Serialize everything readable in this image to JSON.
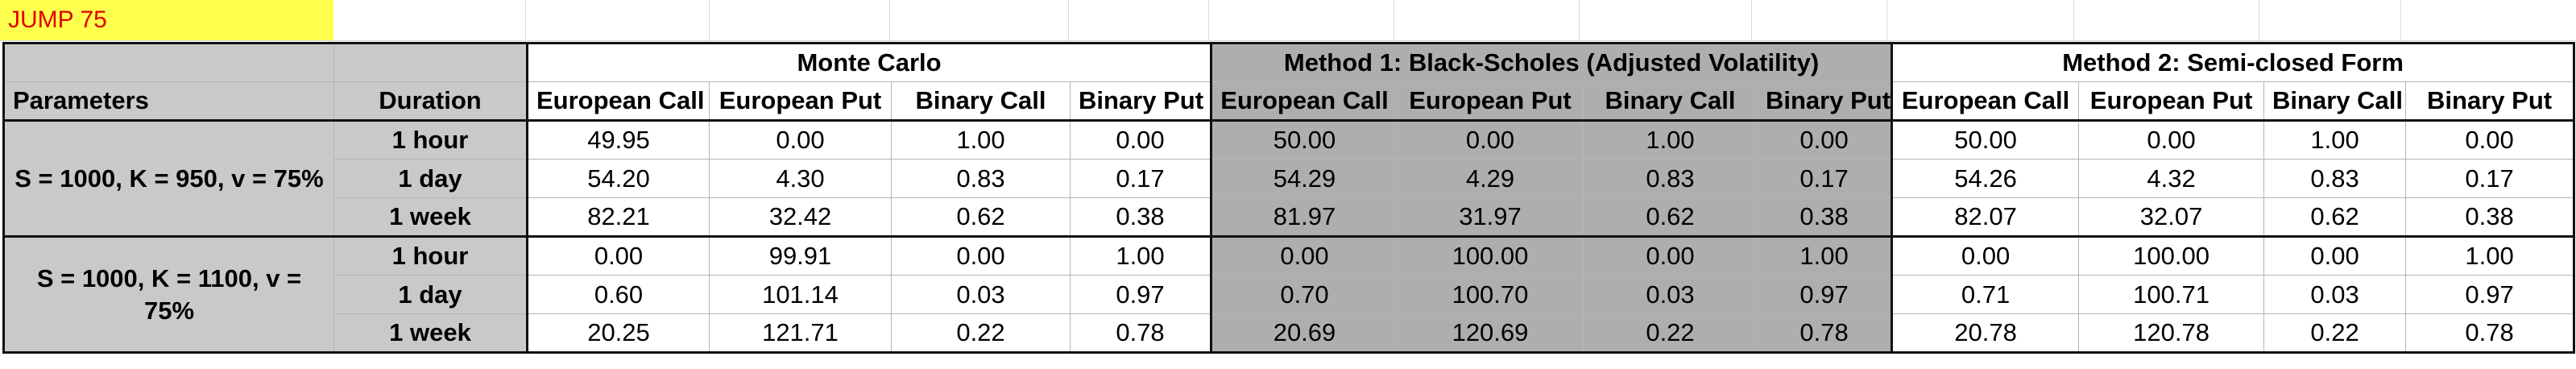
{
  "title": "JUMP 75",
  "groups": {
    "mc": "Monte Carlo",
    "bs": "Method 1: Black-Scholes  (Adjusted Volatility)",
    "sc": "Method 2: Semi-closed Form"
  },
  "headers": {
    "parameters": "Parameters",
    "duration": "Duration",
    "cols": [
      "European Call",
      "European Put",
      "Binary Call",
      "Binary Put"
    ]
  },
  "blocks": [
    {
      "label": "S = 1000, K = 950, v = 75%",
      "rows": [
        {
          "duration": "1 hour",
          "mc": [
            "49.95",
            "0.00",
            "1.00",
            "0.00"
          ],
          "bs": [
            "50.00",
            "0.00",
            "1.00",
            "0.00"
          ],
          "sc": [
            "50.00",
            "0.00",
            "1.00",
            "0.00"
          ]
        },
        {
          "duration": "1 day",
          "mc": [
            "54.20",
            "4.30",
            "0.83",
            "0.17"
          ],
          "bs": [
            "54.29",
            "4.29",
            "0.83",
            "0.17"
          ],
          "sc": [
            "54.26",
            "4.32",
            "0.83",
            "0.17"
          ]
        },
        {
          "duration": "1 week",
          "mc": [
            "82.21",
            "32.42",
            "0.62",
            "0.38"
          ],
          "bs": [
            "81.97",
            "31.97",
            "0.62",
            "0.38"
          ],
          "sc": [
            "82.07",
            "32.07",
            "0.62",
            "0.38"
          ]
        }
      ]
    },
    {
      "label": "S = 1000, K = 1100, v = 75%",
      "rows": [
        {
          "duration": "1 hour",
          "mc": [
            "0.00",
            "99.91",
            "0.00",
            "1.00"
          ],
          "bs": [
            "0.00",
            "100.00",
            "0.00",
            "1.00"
          ],
          "sc": [
            "0.00",
            "100.00",
            "0.00",
            "1.00"
          ]
        },
        {
          "duration": "1 day",
          "mc": [
            "0.60",
            "101.14",
            "0.03",
            "0.97"
          ],
          "bs": [
            "0.70",
            "100.70",
            "0.03",
            "0.97"
          ],
          "sc": [
            "0.71",
            "100.71",
            "0.03",
            "0.97"
          ]
        },
        {
          "duration": "1 week",
          "mc": [
            "20.25",
            "121.71",
            "0.22",
            "0.78"
          ],
          "bs": [
            "20.69",
            "120.69",
            "0.22",
            "0.78"
          ],
          "sc": [
            "20.78",
            "120.78",
            "0.22",
            "0.78"
          ]
        }
      ]
    }
  ]
}
